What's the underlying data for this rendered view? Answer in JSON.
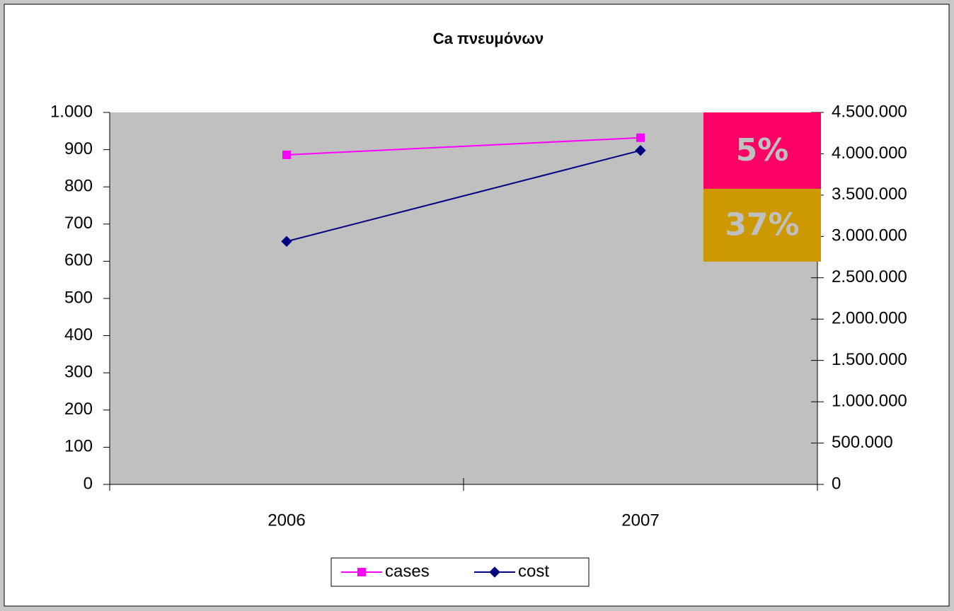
{
  "chart_data": {
    "type": "line",
    "title": "Ca πνευμόνων",
    "categories": [
      "2006",
      "2007"
    ],
    "series": [
      {
        "name": "cases",
        "color": "#ff00ff",
        "marker": "square",
        "values": [
          886,
          932
        ]
      },
      {
        "name": "cost",
        "color": "#000080",
        "marker": "diamond",
        "axis": "y2",
        "values": [
          2940000,
          4040000
        ]
      }
    ],
    "ylim": [
      0,
      1000
    ],
    "yticks": [
      0,
      100,
      200,
      300,
      400,
      500,
      600,
      700,
      800,
      900,
      {
        "value": 1000,
        "label": "1.000"
      }
    ],
    "y2lim": [
      0,
      4500000
    ],
    "y2ticks": [
      0,
      {
        "value": 500000,
        "label": "500.000"
      },
      {
        "value": 1000000,
        "label": "1.000.000"
      },
      {
        "value": 1500000,
        "label": "1.500.000"
      },
      {
        "value": 2000000,
        "label": "2.000.000"
      },
      {
        "value": 2500000,
        "label": "2.500.000"
      },
      {
        "value": 3000000,
        "label": "3.000.000"
      },
      {
        "value": 3500000,
        "label": "3.500.000"
      },
      {
        "value": 4000000,
        "label": "4.000.000"
      },
      {
        "value": 4500000,
        "label": "4.500.000"
      }
    ],
    "grid": false,
    "plot_background": "#c0c0c0",
    "annotations": [
      {
        "text": "5%",
        "color": "#ff0066"
      },
      {
        "text": "37%",
        "color": "#cc9900"
      }
    ]
  }
}
